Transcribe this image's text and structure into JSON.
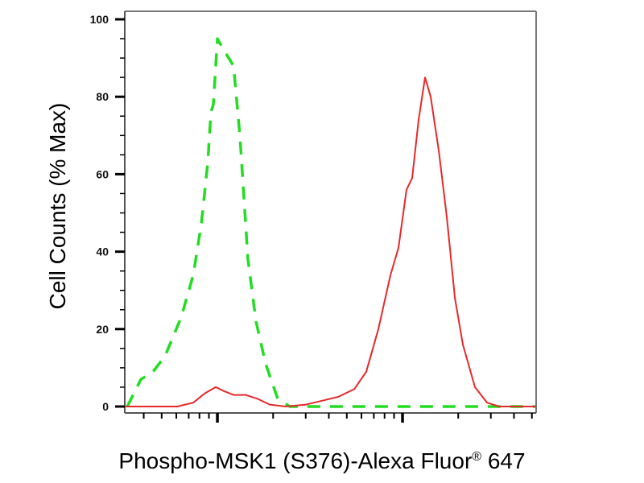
{
  "chart_data": {
    "type": "line",
    "title": "",
    "xlabel_main": "Phospho-MSK1 (S376)-Alexa Fluor",
    "xlabel_reg": "®",
    "xlabel_tail": " 647",
    "ylabel": "Cell Counts (% Max)",
    "x_scale": "log",
    "xlim": [
      316,
      52700
    ],
    "ylim": [
      0,
      100
    ],
    "yticks": [
      0,
      20,
      40,
      60,
      80,
      100
    ],
    "x_tick_labels_shown": false,
    "grid": false,
    "series": [
      {
        "style": "dashed",
        "color": "#22dd22",
        "x": [
          326,
          386,
          449,
          521,
          637,
          741,
          818,
          887,
          923,
          951,
          1000,
          1084,
          1222,
          1323,
          1462,
          1617,
          1823,
          2118,
          2462,
          52700
        ],
        "y": [
          0,
          7,
          9,
          13,
          23,
          34,
          47,
          63,
          76,
          78,
          95,
          92,
          88,
          70,
          38,
          22,
          11,
          2,
          0,
          0
        ]
      },
      {
        "style": "solid",
        "color": "#e8282a",
        "x": [
          316,
          607,
          741,
          861,
          980,
          1084,
          1222,
          1419,
          1649,
          1917,
          2344,
          3006,
          3674,
          4487,
          5486,
          6372,
          7408,
          8610,
          9509,
          10510,
          11270,
          12220,
          13240,
          14190,
          15700,
          17340,
          19180,
          21190,
          24620,
          28630,
          33240,
          52700
        ],
        "y": [
          0,
          0,
          1,
          3.5,
          5,
          4,
          3,
          3,
          2,
          0.5,
          0,
          0.5,
          1.5,
          2.5,
          4.5,
          9,
          20,
          34,
          41,
          56,
          59,
          74,
          85,
          80,
          66,
          49,
          28,
          16,
          5,
          1,
          0,
          0
        ]
      }
    ]
  }
}
